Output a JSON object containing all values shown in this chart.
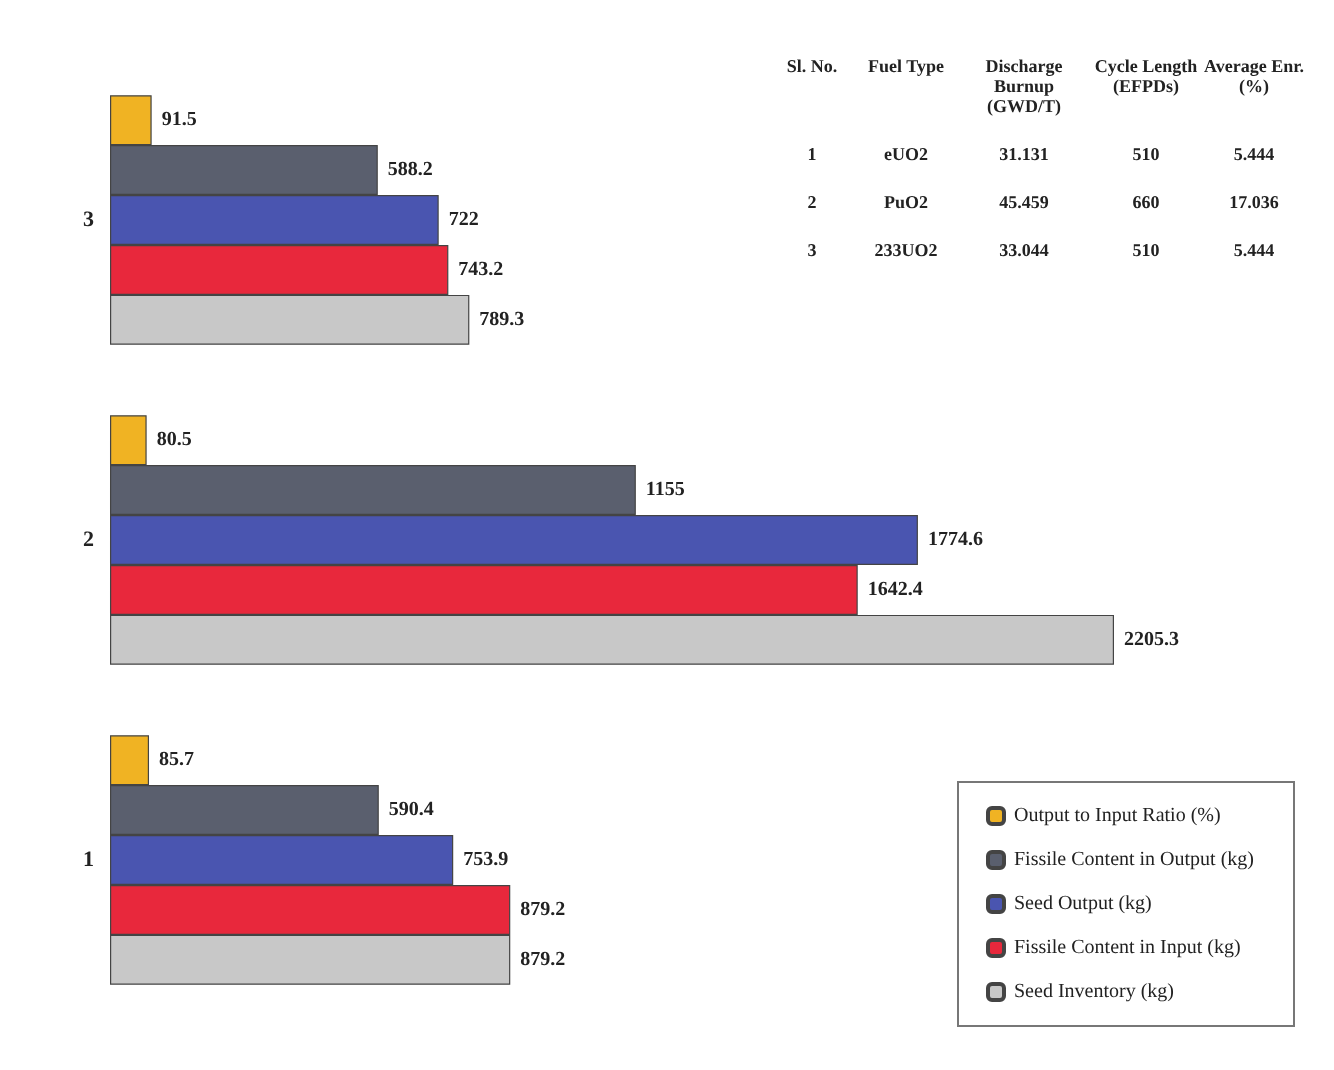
{
  "chart_data": {
    "type": "bar",
    "orientation": "horizontal",
    "categories": [
      "3",
      "2",
      "1"
    ],
    "series": [
      {
        "name": "Output to Input Ratio (%)",
        "color": "#f0b323",
        "values": [
          91.5,
          80.5,
          85.7
        ]
      },
      {
        "name": "Fissile Content in Output (kg)",
        "color": "#5a5f6e",
        "values": [
          588.2,
          1155,
          590.4
        ]
      },
      {
        "name": "Seed Output (kg)",
        "color": "#4a55b0",
        "values": [
          722,
          1774.6,
          753.9
        ]
      },
      {
        "name": "Fissile Content in Input (kg)",
        "color": "#e8283c",
        "values": [
          743.2,
          1642.4,
          879.2
        ]
      },
      {
        "name": "Seed Inventory (kg)",
        "color": "#c8c8c8",
        "values": [
          789.3,
          2205.3,
          879.2
        ]
      }
    ],
    "data_labels": true,
    "tick_labels": "y",
    "legend": "bottom right",
    "annotations": [
      "Sl. No.",
      "Fuel Type",
      "Discharge Burnup (GWD/T)",
      "Cycle Length (EFPDs)",
      "Average Enr. (%)",
      "1",
      "eUO2",
      "31.131",
      "510",
      "5.444",
      "2",
      "PuO2",
      "45.459",
      "660",
      "17.036",
      "3",
      "233UO2",
      "33.044",
      "510",
      "5.444"
    ]
  }
}
